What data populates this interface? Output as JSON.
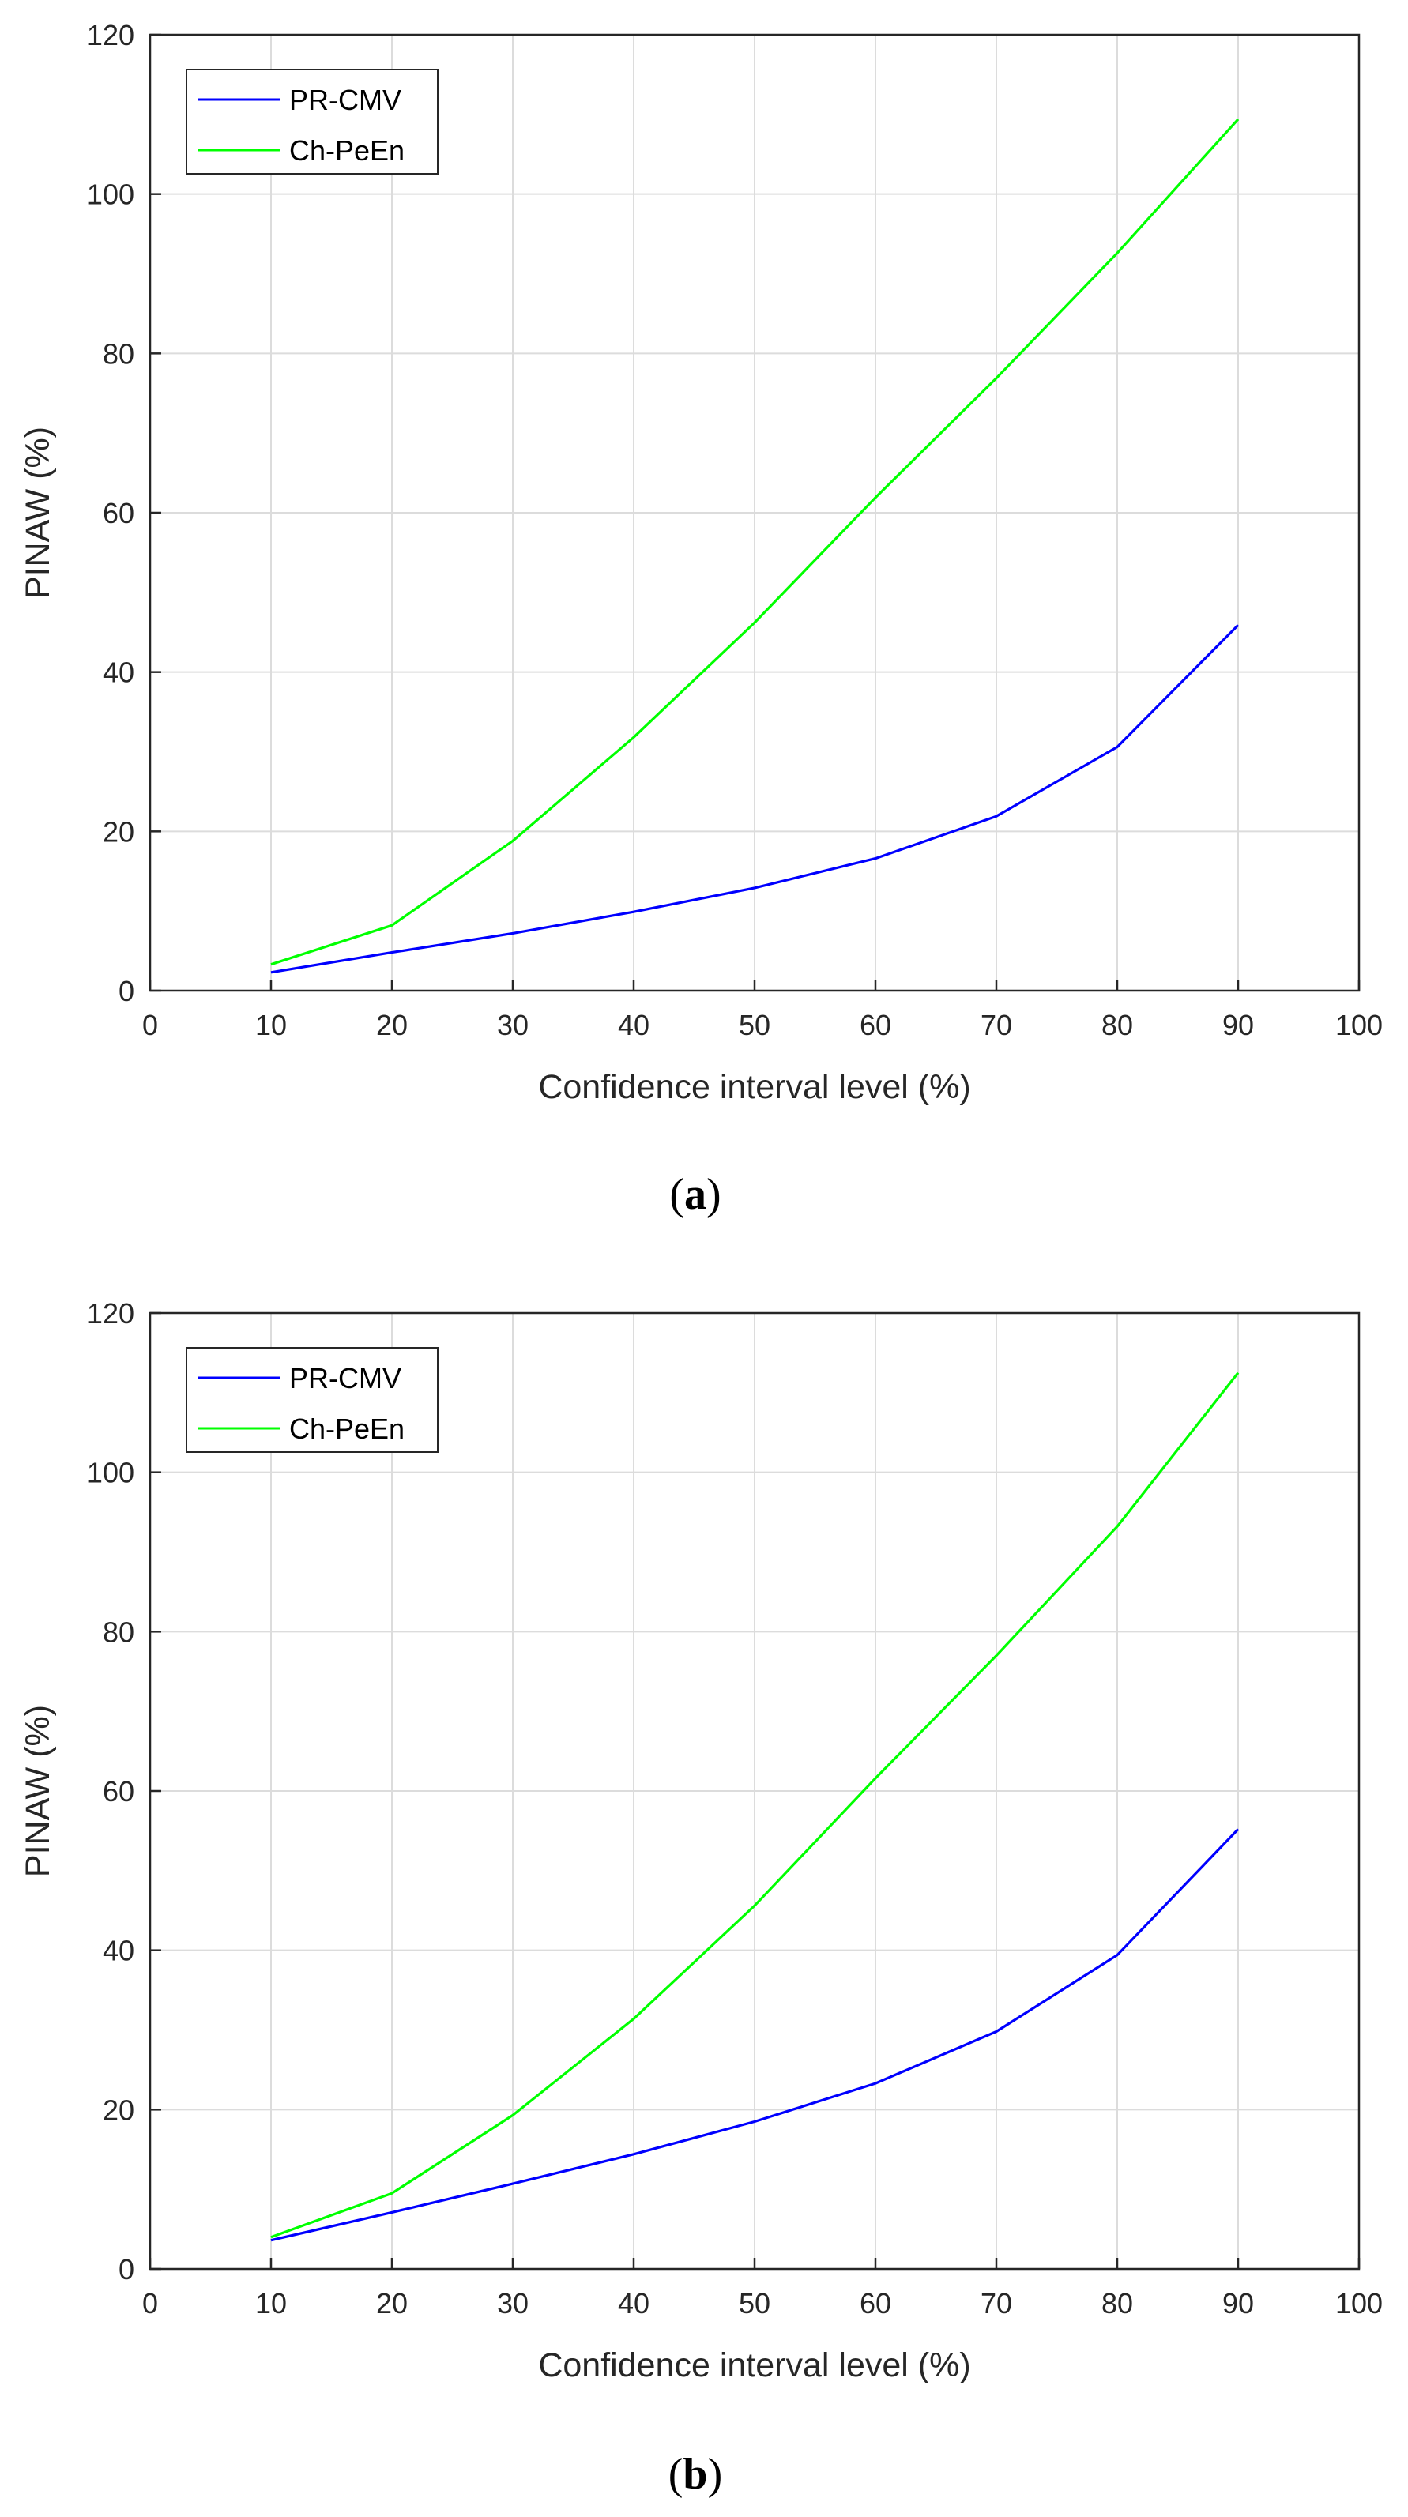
{
  "figure": {
    "panels": [
      "a",
      "b"
    ]
  },
  "chart_data": [
    {
      "type": "line",
      "panel_label": "a",
      "caption": "(a)",
      "caption_open": "(",
      "caption_letter": "a",
      "caption_close": ")",
      "xlabel": "Confidence interval level (%)",
      "ylabel": "PINAW (%)",
      "xlim": [
        0,
        100
      ],
      "ylim": [
        0,
        120
      ],
      "xticks": [
        0,
        10,
        20,
        30,
        40,
        50,
        60,
        70,
        80,
        90,
        100
      ],
      "yticks": [
        0,
        20,
        40,
        60,
        80,
        100,
        120
      ],
      "grid": true,
      "legend_position": "top-left",
      "x": [
        10,
        20,
        30,
        40,
        50,
        60,
        70,
        80,
        90
      ],
      "series": [
        {
          "name": "PR-CMV",
          "color": "#0000ff",
          "values": [
            2.3,
            4.8,
            7.2,
            9.9,
            12.9,
            16.6,
            21.9,
            30.6,
            45.9
          ]
        },
        {
          "name": "Ch-PeEn",
          "color": "#00ff00",
          "values": [
            3.3,
            8.2,
            18.8,
            31.8,
            46.2,
            61.9,
            76.9,
            92.6,
            109.4
          ]
        }
      ]
    },
    {
      "type": "line",
      "panel_label": "b",
      "caption": "(b)",
      "caption_open": "(",
      "caption_letter": "b",
      "caption_close": ")",
      "xlabel": "Confidence interval level (%)",
      "ylabel": "PINAW (%)",
      "xlim": [
        0,
        100
      ],
      "ylim": [
        0,
        120
      ],
      "xticks": [
        0,
        10,
        20,
        30,
        40,
        50,
        60,
        70,
        80,
        90,
        100
      ],
      "yticks": [
        0,
        20,
        40,
        60,
        80,
        100,
        120
      ],
      "grid": true,
      "legend_position": "top-left",
      "x": [
        10,
        20,
        30,
        40,
        50,
        60,
        70,
        80,
        90
      ],
      "series": [
        {
          "name": "PR-CMV",
          "color": "#0000ff",
          "values": [
            3.6,
            7.1,
            10.7,
            14.4,
            18.5,
            23.3,
            29.8,
            39.4,
            55.2
          ]
        },
        {
          "name": "Ch-PeEn",
          "color": "#00ff00",
          "values": [
            4.0,
            9.5,
            19.3,
            31.4,
            45.6,
            61.6,
            77.0,
            93.2,
            112.5
          ]
        }
      ]
    }
  ]
}
